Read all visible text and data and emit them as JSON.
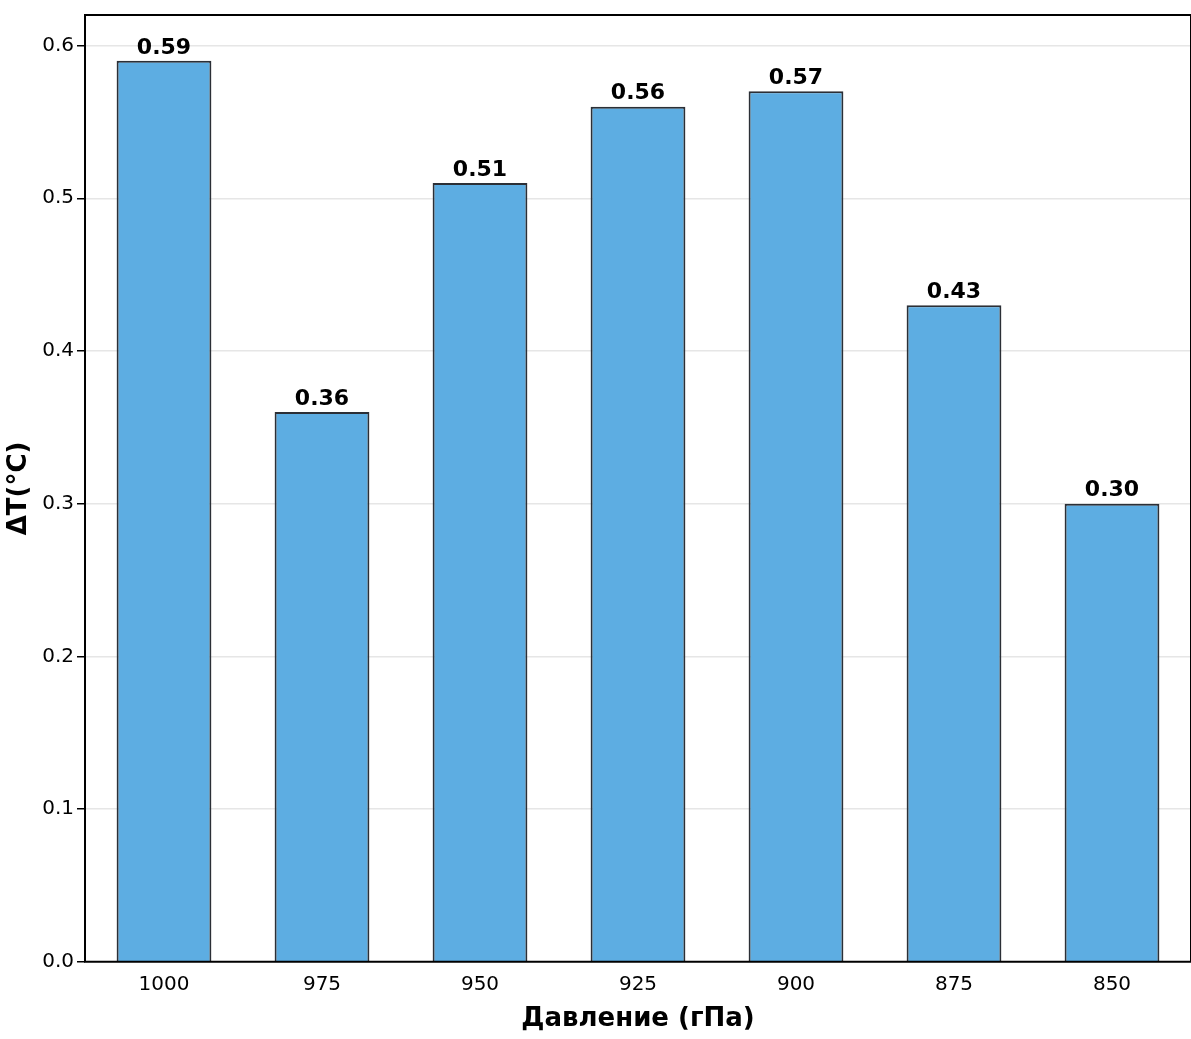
{
  "chart_data": {
    "type": "bar",
    "xlabel": "Давление (гПа)",
    "ylabel": "ΔT(°C)",
    "categories": [
      "1000",
      "975",
      "950",
      "925",
      "900",
      "875",
      "850"
    ],
    "values": [
      0.59,
      0.36,
      0.51,
      0.56,
      0.57,
      0.43,
      0.3
    ],
    "value_labels": [
      "0.59",
      "0.36",
      "0.51",
      "0.56",
      "0.57",
      "0.43",
      "0.30"
    ],
    "color": "#5dade2",
    "ylim": [
      0,
      0.62
    ],
    "yticks": [
      {
        "value": 0,
        "label": "0.0"
      },
      {
        "value": 0.1,
        "label": "0.1"
      },
      {
        "value": 0.2,
        "label": "0.2"
      },
      {
        "value": 0.3,
        "label": "0.3"
      },
      {
        "value": 0.4,
        "label": "0.4"
      },
      {
        "value": 0.5,
        "label": "0.5"
      },
      {
        "value": 0.6,
        "label": "0.6"
      }
    ],
    "grid": "y",
    "legend": false
  }
}
